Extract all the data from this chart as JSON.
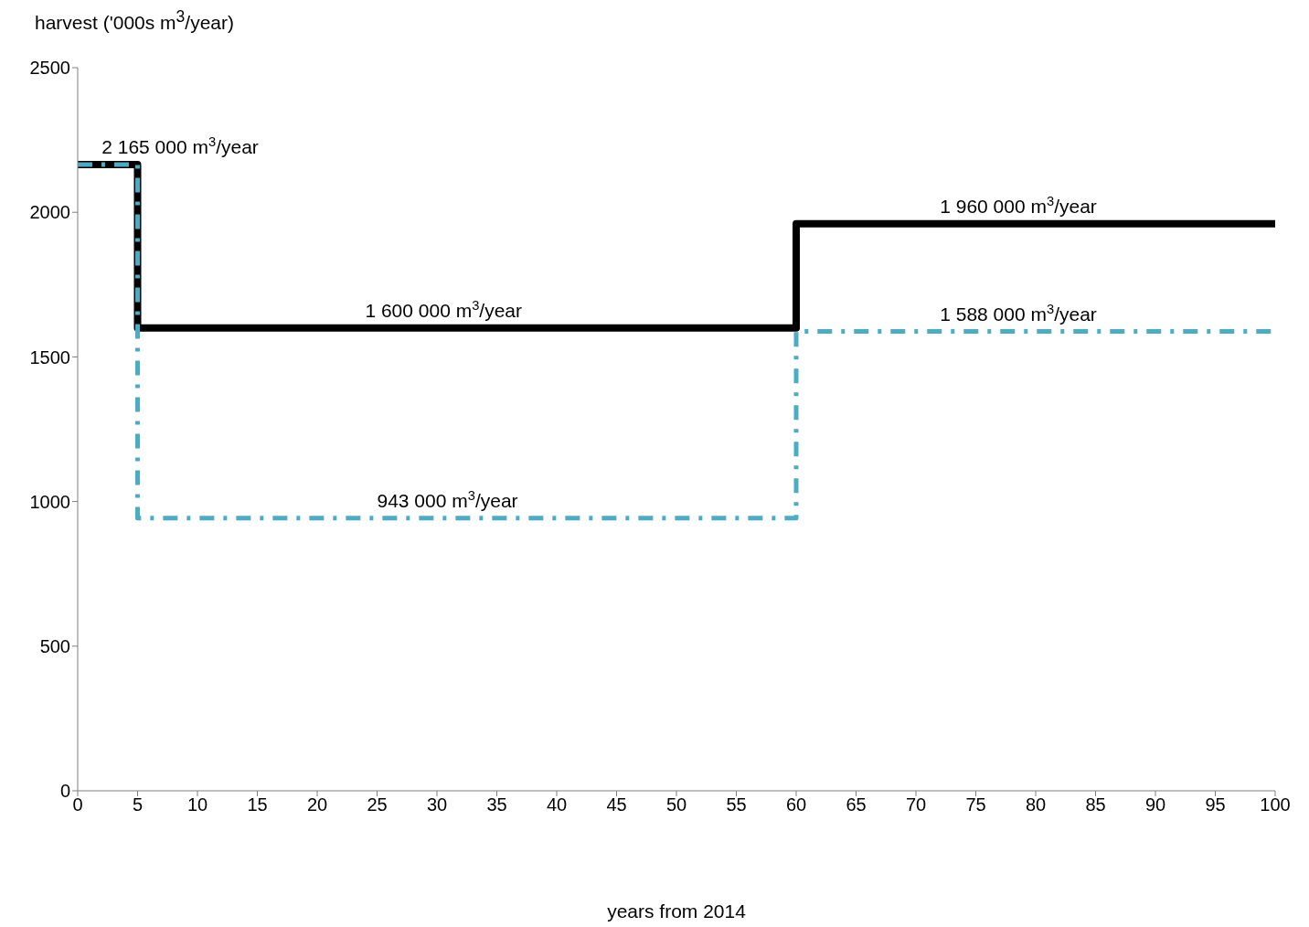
{
  "chart_data": {
    "type": "step",
    "xlabel": "years from 2014",
    "ylabel": "harvest ('000s m$^{3}$/year)",
    "x": [
      0,
      5,
      60,
      100
    ],
    "xlim": [
      0,
      100
    ],
    "xticks": [
      0,
      5,
      10,
      15,
      20,
      25,
      30,
      35,
      40,
      45,
      50,
      55,
      60,
      65,
      70,
      75,
      80,
      85,
      90,
      95,
      100
    ],
    "ylim": [
      0,
      2500
    ],
    "yticks": [
      0,
      500,
      1000,
      1500,
      2000,
      2500
    ],
    "grid": false,
    "marker": "none",
    "series": [
      {
        "color": "#000000",
        "line_style": "solid",
        "values": [
          2165,
          1600,
          1960,
          1960
        ]
      },
      {
        "color": "#4bacc6",
        "line_style": "dashed",
        "values": [
          2165,
          943,
          1588,
          1588
        ]
      }
    ],
    "annotations": [
      {
        "text": "2 165 000 m$^{3}$/year",
        "x": 2,
        "y": 2165
      },
      {
        "text": "1 600 000 m$^{3}$/year",
        "x": 24,
        "y": 1600
      },
      {
        "text": "1 960 000 m$^{3}$/year",
        "x": 72,
        "y": 1960
      },
      {
        "text": "1 588 000 m$^{3}$/year",
        "x": 72,
        "y": 1588
      },
      {
        "text": "943 000 m$^{3}$/year",
        "x": 25,
        "y": 943
      }
    ]
  }
}
